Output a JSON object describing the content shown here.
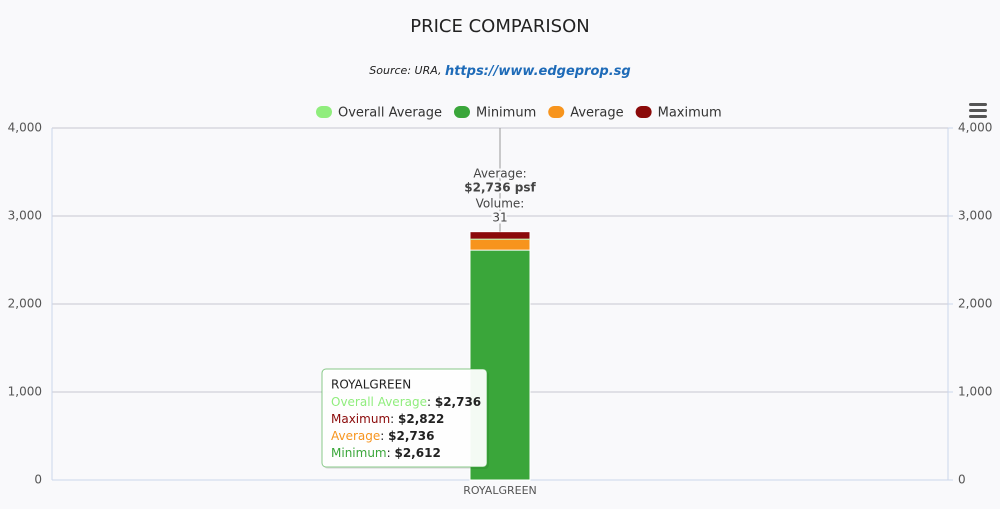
{
  "chart_data": {
    "type": "bar",
    "title": "PRICE COMPARISON",
    "subtitle": {
      "prefix": "Source: URA,",
      "link": "https://www.edgeprop.sg"
    },
    "categories": [
      "ROYALGREEN"
    ],
    "series": [
      {
        "name": "Overall Average",
        "color": "#90ed7d",
        "values": [
          2736
        ],
        "value_labels": [
          "$2,736"
        ]
      },
      {
        "name": "Minimum",
        "color": "#3aa63a",
        "values": [
          2612
        ],
        "value_labels": [
          "$2,612"
        ]
      },
      {
        "name": "Average",
        "color": "#f7941d",
        "values": [
          2736
        ],
        "value_labels": [
          "$2,736"
        ]
      },
      {
        "name": "Maximum",
        "color": "#8b0a0a",
        "values": [
          2822
        ],
        "value_labels": [
          "$2,822"
        ]
      }
    ],
    "ylim": [
      0,
      4000
    ],
    "yticks": [
      0,
      {
        "value": 1000,
        "label": "1,000"
      },
      {
        "value": 2000,
        "label": "2,000"
      },
      {
        "value": 3000,
        "label": "3,000"
      },
      {
        "value": 4000,
        "label": "4,000"
      }
    ],
    "y2lim": [
      0,
      4000
    ],
    "y2ticks": [
      0,
      {
        "value": 1000,
        "label": "1,000"
      },
      {
        "value": 2000,
        "label": "2,000"
      },
      {
        "value": 3000,
        "label": "3,000"
      },
      {
        "value": 4000,
        "label": "4,000"
      }
    ],
    "grid": true,
    "legend": "top",
    "annotation": [
      "Average:",
      "$2,736 psf",
      "Volume:",
      "31"
    ],
    "tooltip": {
      "title": "ROYALGREEN"
    }
  }
}
